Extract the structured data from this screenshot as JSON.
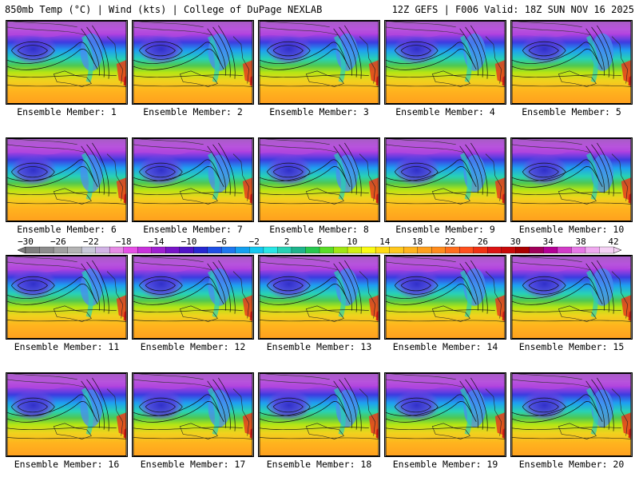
{
  "header": {
    "left": "850mb Temp (°C) | Wind (kts) | College of DuPage NEXLAB",
    "right": "12Z GEFS | F006 Valid: 18Z SUN NOV 16 2025"
  },
  "panels": [
    {
      "label": "Ensemble Member: 1"
    },
    {
      "label": "Ensemble Member: 2"
    },
    {
      "label": "Ensemble Member: 3"
    },
    {
      "label": "Ensemble Member: 4"
    },
    {
      "label": "Ensemble Member: 5"
    },
    {
      "label": "Ensemble Member: 6"
    },
    {
      "label": "Ensemble Member: 7"
    },
    {
      "label": "Ensemble Member: 8"
    },
    {
      "label": "Ensemble Member: 9"
    },
    {
      "label": "Ensemble Member: 10"
    },
    {
      "label": "Ensemble Member: 11"
    },
    {
      "label": "Ensemble Member: 12"
    },
    {
      "label": "Ensemble Member: 13"
    },
    {
      "label": "Ensemble Member: 14"
    },
    {
      "label": "Ensemble Member: 15"
    },
    {
      "label": "Ensemble Member: 16"
    },
    {
      "label": "Ensemble Member: 17"
    },
    {
      "label": "Ensemble Member: 18"
    },
    {
      "label": "Ensemble Member: 19"
    },
    {
      "label": "Ensemble Member: 20"
    }
  ],
  "colorbar": {
    "ticks": [
      "−30",
      "−26",
      "−22",
      "−18",
      "−14",
      "−10",
      "−6",
      "−2",
      "2",
      "6",
      "10",
      "14",
      "18",
      "22",
      "26",
      "30",
      "34",
      "38",
      "42"
    ],
    "colors": [
      "#7f7f7f",
      "#8c8c8c",
      "#a0a0a0",
      "#b4b4b4",
      "#c8c8d8",
      "#d2b4e6",
      "#e68ce6",
      "#e650e6",
      "#c832dc",
      "#a020d2",
      "#7814c8",
      "#5014c8",
      "#2828d2",
      "#1e50e6",
      "#1e78f0",
      "#14a0f0",
      "#14c8f0",
      "#28e6e6",
      "#28d2b4",
      "#1eb48c",
      "#28c850",
      "#5adc28",
      "#a0e614",
      "#d2f014",
      "#fafa14",
      "#ffdc14",
      "#ffc81e",
      "#ffb41e",
      "#ffa01e",
      "#ff8c1e",
      "#ff6e1e",
      "#ff501e",
      "#f03214",
      "#dc1414",
      "#c80a0a",
      "#aa0000",
      "#a0005a",
      "#b40096",
      "#d23cc8",
      "#e678e6",
      "#f0aaf0",
      "#f5d2f5"
    ]
  }
}
